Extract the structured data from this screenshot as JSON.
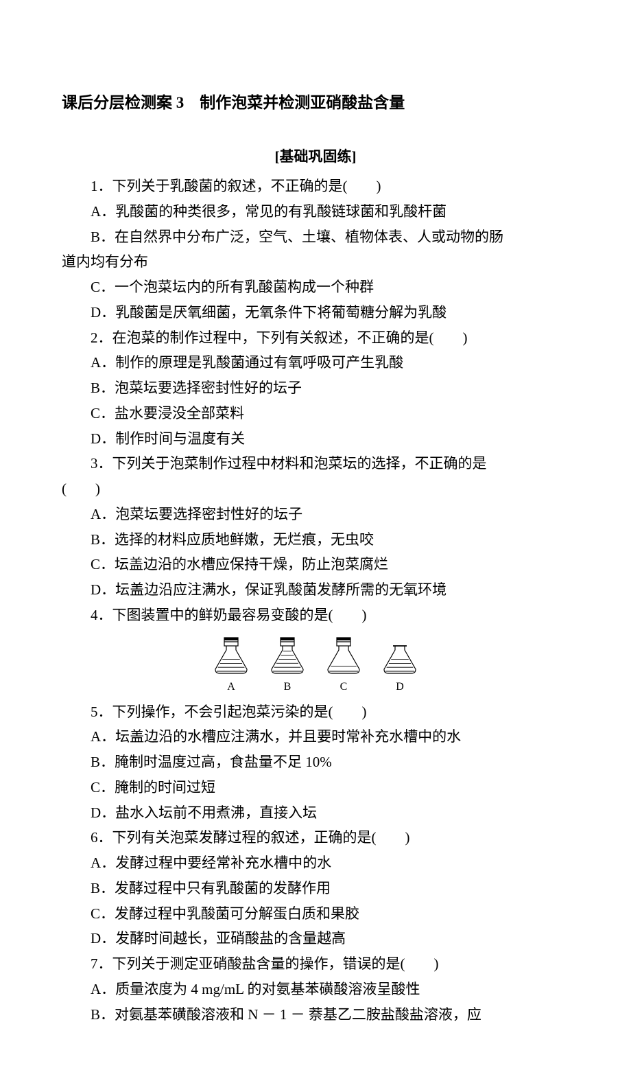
{
  "background_color": "#ffffff",
  "text_color": "#000000",
  "font_family": "SimSun",
  "base_font_size": 21,
  "title": "课后分层检测案 3　制作泡菜并检测亚硝酸盐含量",
  "section_header": "[基础巩固练]",
  "questions": [
    {
      "stem": "1．下列关于乳酸菌的叙述，不正确的是(　　)",
      "options": [
        "A．乳酸菌的种类很多，常见的有乳酸链球菌和乳酸杆菌",
        "B．在自然界中分布广泛，空气、土壤、植物体表、人或动物的肠道内均有分布",
        "C．一个泡菜坛内的所有乳酸菌构成一个种群",
        "D．乳酸菌是厌氧细菌，无氧条件下将葡萄糖分解为乳酸"
      ],
      "option_b_wraps": true
    },
    {
      "stem": "2．在泡菜的制作过程中，下列有关叙述，不正确的是(　　)",
      "options": [
        "A．制作的原理是乳酸菌通过有氧呼吸可产生乳酸",
        "B．泡菜坛要选择密封性好的坛子",
        "C．盐水要浸没全部菜料",
        "D．制作时间与温度有关"
      ]
    },
    {
      "stem": "3．下列关于泡菜制作过程中材料和泡菜坛的选择，不正确的是(　　)",
      "stem_wraps": true,
      "options": [
        "A．泡菜坛要选择密封性好的坛子",
        "B．选择的材料应质地鲜嫩，无烂痕，无虫咬",
        "C．坛盖边沿的水槽应保持干燥，防止泡菜腐烂",
        "D．坛盖边沿应注满水，保证乳酸菌发酵所需的无氧环境"
      ]
    },
    {
      "stem": "4．下图装置中的鲜奶最容易变酸的是(　　)",
      "options": [],
      "diagram": {
        "type": "flask-row",
        "flasks": [
          {
            "label": "A",
            "cap": "closed",
            "fill": 0.6
          },
          {
            "label": "B",
            "cap": "closed",
            "fill": 0.95
          },
          {
            "label": "C",
            "cap": "closed",
            "fill": 0.3
          },
          {
            "label": "D",
            "cap": "open",
            "fill": 0.6
          }
        ],
        "stroke_color": "#000000",
        "stroke_width": 1.2,
        "flask_width": 52,
        "flask_height": 62
      }
    },
    {
      "stem": "5．下列操作，不会引起泡菜污染的是(　　)",
      "options": [
        "A．坛盖边沿的水槽应注满水，并且要时常补充水槽中的水",
        "B．腌制时温度过高，食盐量不足 10%",
        "C．腌制的时间过短",
        "D．盐水入坛前不用煮沸，直接入坛"
      ]
    },
    {
      "stem": "6．下列有关泡菜发酵过程的叙述，正确的是(　　)",
      "options": [
        "A．发酵过程中要经常补充水槽中的水",
        "B．发酵过程中只有乳酸菌的发酵作用",
        "C．发酵过程中乳酸菌可分解蛋白质和果胶",
        "D．发酵时间越长，亚硝酸盐的含量越高"
      ]
    },
    {
      "stem": "7．下列关于测定亚硝酸盐含量的操作，错误的是(　　)",
      "options": [
        "A．质量浓度为 4 mg/mL 的对氨基苯磺酸溶液呈酸性",
        "B．对氨基苯磺酸溶液和 N － 1 － 萘基乙二胺盐酸盐溶液，应"
      ]
    }
  ]
}
